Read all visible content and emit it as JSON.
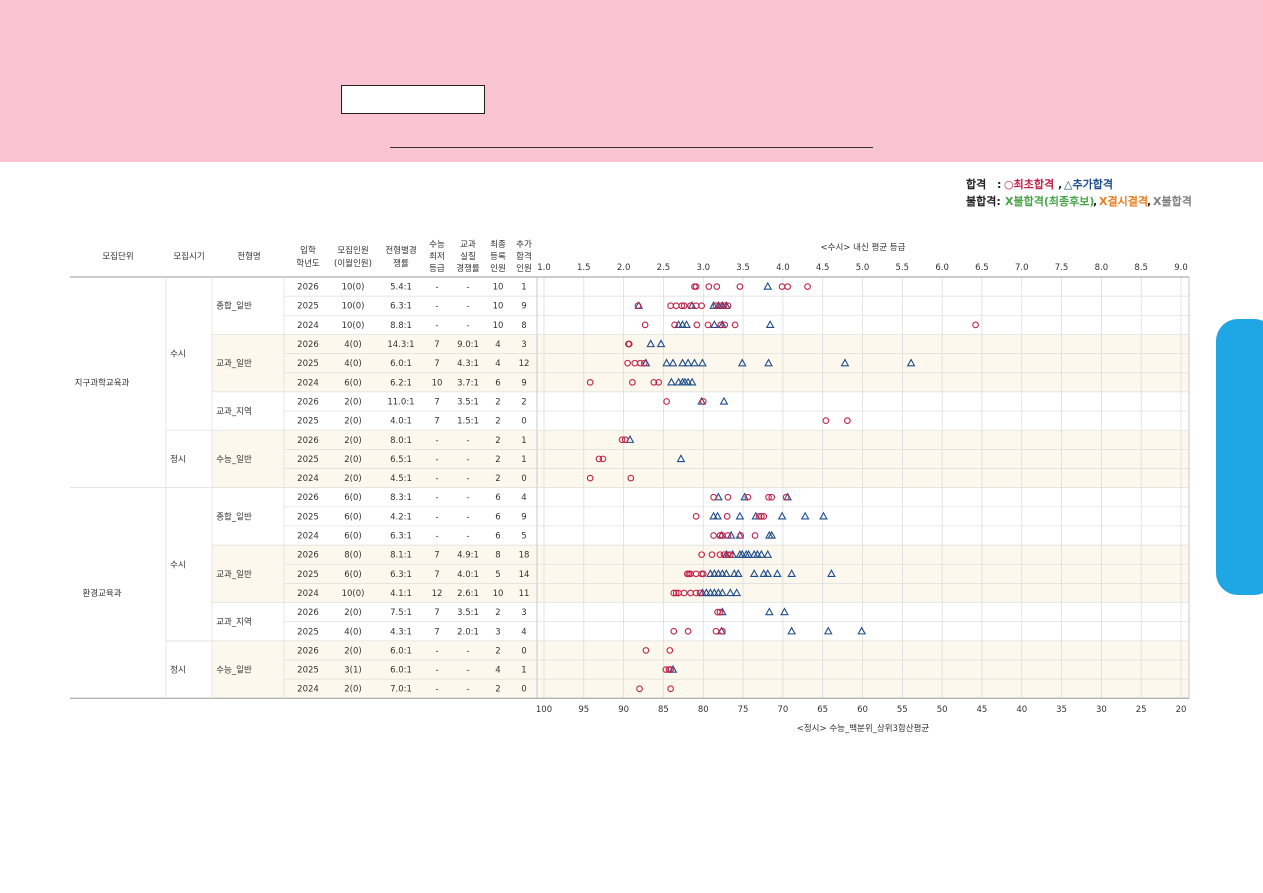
{
  "legend": {
    "pass_label": "합격",
    "pass_sep": ":",
    "pass_first": "○최초합격",
    "pass_comma": ",",
    "pass_extra": "△추가합격",
    "fail_label": "불합격:",
    "fail_final": "X불합격(최종후보)",
    "fail_comma1": ",",
    "fail_absent": "X결시결격",
    "fail_comma2": ",",
    "fail_other": "X불합격",
    "colors": {
      "first": "#c0244a",
      "extra": "#1f4e8c",
      "fail_final": "#4aa54a",
      "fail_absent": "#e67e22",
      "fail_other": "#7f7f7f"
    }
  },
  "table": {
    "headers": {
      "unit": "모집단위",
      "period": "모집시기",
      "type": "전형명",
      "year": [
        "입학",
        "학년도"
      ],
      "quota": [
        "모집인원",
        "(이월인원)"
      ],
      "comp": [
        "전형별경",
        "쟁률"
      ],
      "csat_min": [
        "수능",
        "최저",
        "등급"
      ],
      "subject_comp": [
        "교과",
        "실질",
        "경쟁률"
      ],
      "final_reg": [
        "최종",
        "등록",
        "인원"
      ],
      "extra_pass": [
        "추가",
        "합격",
        "인원"
      ]
    },
    "groups": [
      {
        "unit": "지구과학교육과",
        "start": 0,
        "end": 11,
        "periods": [
          {
            "period": "수시",
            "start": 0,
            "end": 8,
            "types": [
              {
                "type": "종합_일반",
                "start": 0,
                "end": 3
              },
              {
                "type": "교과_일반",
                "start": 3,
                "end": 6
              },
              {
                "type": "교과_지역",
                "start": 6,
                "end": 8
              }
            ]
          },
          {
            "period": "정시",
            "start": 8,
            "end": 11,
            "types": [
              {
                "type": "수능_일반",
                "start": 8,
                "end": 11
              }
            ]
          }
        ]
      },
      {
        "unit": "환경교육과",
        "start": 11,
        "end": 22,
        "periods": [
          {
            "period": "수시",
            "start": 11,
            "end": 19,
            "types": [
              {
                "type": "종합_일반",
                "start": 11,
                "end": 14
              },
              {
                "type": "교과_일반",
                "start": 14,
                "end": 17
              },
              {
                "type": "교과_지역",
                "start": 17,
                "end": 19
              }
            ]
          },
          {
            "period": "정시",
            "start": 19,
            "end": 22,
            "types": [
              {
                "type": "수능_일반",
                "start": 19,
                "end": 22
              }
            ]
          }
        ]
      }
    ],
    "rows": [
      {
        "year": "2026",
        "quota": "10(0)",
        "comp": "5.4:1",
        "csat": "-",
        "sub": "-",
        "reg": "10",
        "extra": "1"
      },
      {
        "year": "2025",
        "quota": "10(0)",
        "comp": "6.3:1",
        "csat": "-",
        "sub": "-",
        "reg": "10",
        "extra": "9"
      },
      {
        "year": "2024",
        "quota": "10(0)",
        "comp": "8.8:1",
        "csat": "-",
        "sub": "-",
        "reg": "10",
        "extra": "8"
      },
      {
        "year": "2026",
        "quota": "4(0)",
        "comp": "14.3:1",
        "csat": "7",
        "sub": "9.0:1",
        "reg": "4",
        "extra": "3"
      },
      {
        "year": "2025",
        "quota": "4(0)",
        "comp": "6.0:1",
        "csat": "7",
        "sub": "4.3:1",
        "reg": "4",
        "extra": "12"
      },
      {
        "year": "2024",
        "quota": "6(0)",
        "comp": "6.2:1",
        "csat": "10",
        "sub": "3.7:1",
        "reg": "6",
        "extra": "9"
      },
      {
        "year": "2026",
        "quota": "2(0)",
        "comp": "11.0:1",
        "csat": "7",
        "sub": "3.5:1",
        "reg": "2",
        "extra": "2"
      },
      {
        "year": "2025",
        "quota": "2(0)",
        "comp": "4.0:1",
        "csat": "7",
        "sub": "1.5:1",
        "reg": "2",
        "extra": "0"
      },
      {
        "year": "2026",
        "quota": "2(0)",
        "comp": "8.0:1",
        "csat": "-",
        "sub": "-",
        "reg": "2",
        "extra": "1"
      },
      {
        "year": "2025",
        "quota": "2(0)",
        "comp": "6.5:1",
        "csat": "-",
        "sub": "-",
        "reg": "2",
        "extra": "1"
      },
      {
        "year": "2024",
        "quota": "2(0)",
        "comp": "4.5:1",
        "csat": "-",
        "sub": "-",
        "reg": "2",
        "extra": "0"
      },
      {
        "year": "2026",
        "quota": "6(0)",
        "comp": "8.3:1",
        "csat": "-",
        "sub": "-",
        "reg": "6",
        "extra": "4"
      },
      {
        "year": "2025",
        "quota": "6(0)",
        "comp": "4.2:1",
        "csat": "-",
        "sub": "-",
        "reg": "6",
        "extra": "9"
      },
      {
        "year": "2024",
        "quota": "6(0)",
        "comp": "6.3:1",
        "csat": "-",
        "sub": "-",
        "reg": "6",
        "extra": "5"
      },
      {
        "year": "2026",
        "quota": "8(0)",
        "comp": "8.1:1",
        "csat": "7",
        "sub": "4.9:1",
        "reg": "8",
        "extra": "18"
      },
      {
        "year": "2025",
        "quota": "6(0)",
        "comp": "6.3:1",
        "csat": "7",
        "sub": "4.0:1",
        "reg": "5",
        "extra": "14"
      },
      {
        "year": "2024",
        "quota": "10(0)",
        "comp": "4.1:1",
        "csat": "12",
        "sub": "2.6:1",
        "reg": "10",
        "extra": "11"
      },
      {
        "year": "2026",
        "quota": "2(0)",
        "comp": "7.5:1",
        "csat": "7",
        "sub": "3.5:1",
        "reg": "2",
        "extra": "3"
      },
      {
        "year": "2025",
        "quota": "4(0)",
        "comp": "4.3:1",
        "csat": "7",
        "sub": "2.0:1",
        "reg": "3",
        "extra": "4"
      },
      {
        "year": "2026",
        "quota": "2(0)",
        "comp": "6.0:1",
        "csat": "-",
        "sub": "-",
        "reg": "2",
        "extra": "0"
      },
      {
        "year": "2025",
        "quota": "3(1)",
        "comp": "6.0:1",
        "csat": "-",
        "sub": "-",
        "reg": "4",
        "extra": "1"
      },
      {
        "year": "2024",
        "quota": "2(0)",
        "comp": "7.0:1",
        "csat": "-",
        "sub": "-",
        "reg": "2",
        "extra": "0"
      }
    ],
    "shaded_rows": [
      3,
      4,
      5,
      8,
      9,
      10,
      14,
      15,
      16,
      19,
      20,
      21
    ],
    "shade_color": "#fdf8ee"
  },
  "chart_data": {
    "type": "scatter",
    "top_axis_label": "<수시> 내신 평균 등급",
    "bottom_axis_label": "<정시> 수능_백분위_상위3합산평균",
    "top_ticks": [
      "1.0",
      "1.5",
      "2.0",
      "2.5",
      "3.0",
      "3.5",
      "4.0",
      "4.5",
      "5.0",
      "5.5",
      "6.0",
      "6.5",
      "7.0",
      "7.5",
      "8.0",
      "8.5",
      "9.0"
    ],
    "bottom_ticks": [
      "100",
      "95",
      "90",
      "85",
      "80",
      "75",
      "70",
      "65",
      "60",
      "55",
      "50",
      "45",
      "40",
      "35",
      "30",
      "25",
      "20"
    ],
    "xlim": [
      1.0,
      9.0
    ],
    "grid": true,
    "rows": [
      {
        "circles": [
          2.89,
          2.91,
          3.07,
          3.17,
          3.46,
          3.99,
          4.06,
          4.31
        ],
        "triangles": [
          3.81
        ]
      },
      {
        "circles": [
          2.18,
          2.59,
          2.66,
          2.73,
          2.76,
          2.84,
          2.91,
          2.98,
          3.16,
          3.21,
          3.26,
          3.31
        ],
        "triangles": [
          2.19,
          2.86,
          3.13,
          3.19,
          3.24,
          3.29
        ]
      },
      {
        "circles": [
          2.27,
          2.64,
          2.92,
          3.06,
          3.22,
          3.27,
          3.4,
          6.42
        ],
        "triangles": [
          2.69,
          2.74,
          2.79,
          3.14,
          3.24,
          3.84
        ]
      },
      {
        "circles": [
          2.06,
          2.07
        ],
        "triangles": [
          2.34,
          2.47
        ]
      },
      {
        "circles": [
          2.05,
          2.14,
          2.21,
          2.26
        ],
        "triangles": [
          2.28,
          2.54,
          2.62,
          2.74,
          2.81,
          2.89,
          2.99,
          3.49,
          3.82,
          4.78,
          5.61
        ]
      },
      {
        "circles": [
          1.58,
          2.11,
          2.38,
          2.44
        ],
        "triangles": [
          2.6,
          2.69,
          2.74,
          2.77,
          2.81,
          2.86
        ]
      },
      {
        "circles": [
          2.54,
          3.0
        ],
        "triangles": [
          2.98,
          3.26
        ]
      },
      {
        "circles": [
          4.54,
          4.81
        ],
        "triangles": []
      },
      {
        "circles": [
          90.2,
          89.8
        ],
        "triangles": [
          89.2
        ]
      },
      {
        "circles": [
          93.1,
          92.6
        ],
        "triangles": [
          82.8
        ]
      },
      {
        "circles": [
          94.2,
          89.1
        ],
        "triangles": []
      },
      {
        "circles": [
          3.13,
          3.31,
          3.56,
          3.82,
          3.86,
          4.04
        ],
        "triangles": [
          3.19,
          3.52,
          4.06
        ]
      },
      {
        "circles": [
          2.91,
          3.3,
          3.7,
          3.73,
          3.76
        ],
        "triangles": [
          3.13,
          3.18,
          3.46,
          3.66,
          3.99,
          4.28,
          4.51
        ]
      },
      {
        "circles": [
          3.13,
          3.21,
          3.24,
          3.31,
          3.47,
          3.65
        ],
        "triangles": [
          3.23,
          3.35,
          3.46,
          3.83,
          3.86
        ]
      },
      {
        "circles": [
          2.98,
          3.11,
          3.21,
          3.26,
          3.31,
          3.34
        ],
        "triangles": [
          3.29,
          3.37,
          3.46,
          3.49,
          3.54,
          3.57,
          3.64,
          3.68,
          3.73,
          3.81
        ]
      },
      {
        "circles": [
          2.8,
          2.82,
          2.84,
          2.91,
          2.98,
          3.0
        ],
        "triangles": [
          3.09,
          3.14,
          3.19,
          3.24,
          3.29,
          3.39,
          3.44,
          3.64,
          3.76,
          3.81,
          3.93,
          4.11,
          4.61
        ]
      },
      {
        "circles": [
          2.63,
          2.66,
          2.69,
          2.76,
          2.84,
          2.91,
          2.96
        ],
        "triangles": [
          2.99,
          3.04,
          3.09,
          3.14,
          3.19,
          3.24,
          3.34,
          3.42
        ]
      },
      {
        "circles": [
          3.18,
          3.21
        ],
        "triangles": [
          3.24,
          3.83,
          4.02
        ]
      },
      {
        "circles": [
          2.63,
          2.81,
          3.16,
          3.24
        ],
        "triangles": [
          3.23,
          4.11,
          4.57,
          4.99
        ]
      },
      {
        "circles": [
          87.2,
          84.2
        ],
        "triangles": []
      },
      {
        "circles": [
          84.7,
          84.3,
          84.1
        ],
        "triangles": [
          83.8
        ]
      },
      {
        "circles": [
          88.0,
          84.1
        ],
        "triangles": []
      }
    ],
    "percentile_rows": [
      8,
      9,
      10,
      19,
      20,
      21
    ]
  }
}
